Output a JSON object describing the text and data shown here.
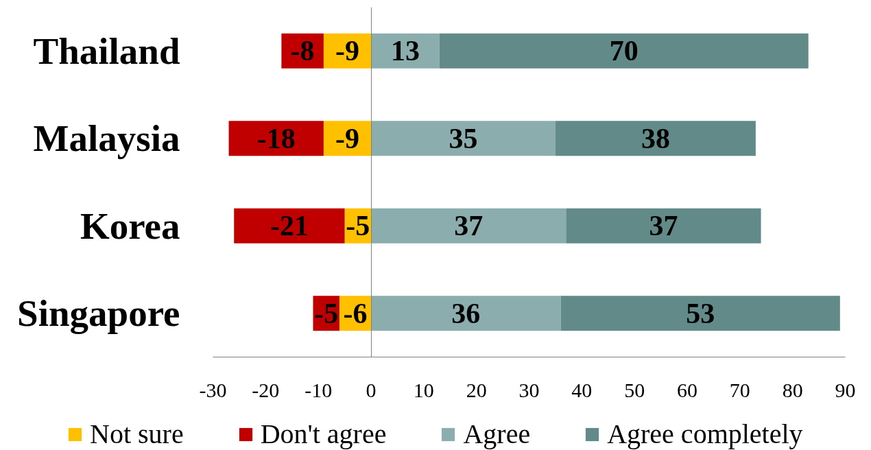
{
  "chart_data": {
    "type": "bar",
    "orientation": "horizontal",
    "stacked": true,
    "categories": [
      "Thailand",
      "Malaysia",
      "Korea",
      "Singapore"
    ],
    "series": [
      {
        "name": "Not sure",
        "color": "#ffc000",
        "values": [
          -9,
          -9,
          -5,
          -6
        ]
      },
      {
        "name": "Don't agree",
        "color": "#c00000",
        "values": [
          -8,
          -18,
          -21,
          -5
        ]
      },
      {
        "name": "Agree",
        "color": "#8cadad",
        "values": [
          13,
          35,
          37,
          36
        ]
      },
      {
        "name": "Agree completely",
        "color": "#618a89",
        "values": [
          70,
          38,
          37,
          53
        ]
      }
    ],
    "xlim": [
      -30,
      90
    ],
    "xticks": [
      -30,
      -20,
      -10,
      0,
      10,
      20,
      30,
      40,
      50,
      60,
      70,
      80,
      90
    ],
    "data_labels": true,
    "legend": "bottom"
  }
}
